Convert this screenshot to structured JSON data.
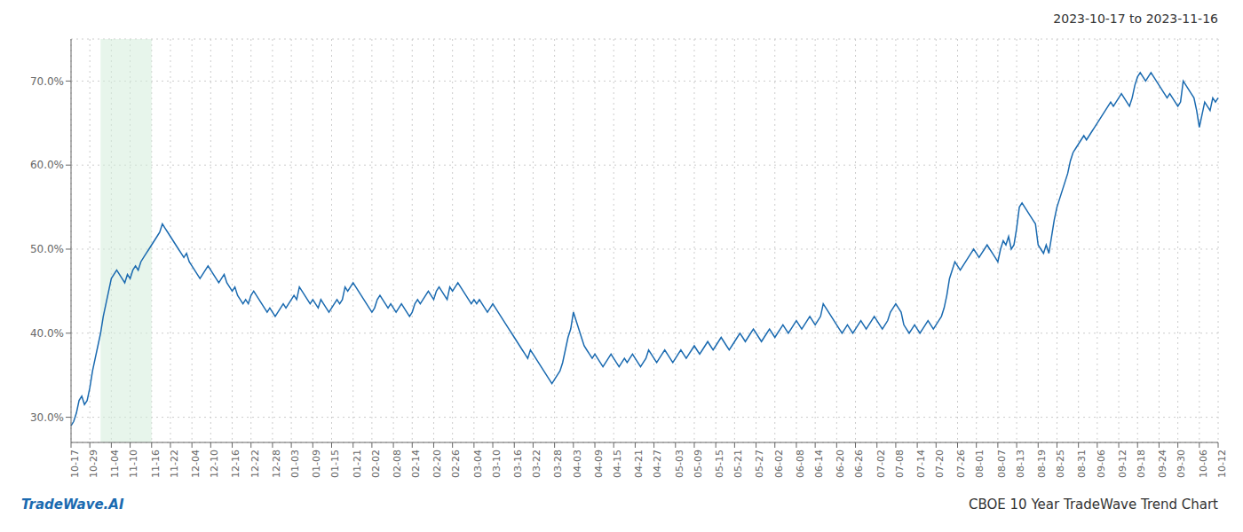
{
  "chart_data": {
    "type": "line",
    "title": "2023-10-17 to 2023-11-16",
    "annotations": [
      {
        "text": "TradeWave.AI",
        "color": "#1a6ab0"
      },
      {
        "text": "CBOE 10 Year TradeWave Trend Chart"
      }
    ],
    "color": "#1a6ab0",
    "grid": true,
    "highlight": {
      "from": 1.5,
      "to": 4.0,
      "color": "#d4edda"
    },
    "ylim": [
      27.0,
      75.0
    ],
    "yticks": [
      {
        "value": 30.0,
        "label": "30.0%"
      },
      {
        "value": 40.0,
        "label": "40.0%"
      },
      {
        "value": 50.0,
        "label": "50.0%"
      },
      {
        "value": 60.0,
        "label": "60.0%"
      },
      {
        "value": 70.0,
        "label": "70.0%"
      }
    ],
    "categories": [
      "10-17",
      null,
      null,
      null,
      null,
      null,
      null,
      "10-29",
      null,
      null,
      null,
      null,
      null,
      null,
      null,
      "11-04",
      null,
      null,
      null,
      null,
      null,
      null,
      "11-10",
      null,
      null,
      null,
      null,
      null,
      null,
      null,
      "11-16",
      null,
      null,
      null,
      null,
      null,
      null,
      "11-22",
      null,
      null,
      null,
      null,
      null,
      null,
      null,
      "12-04",
      null,
      null,
      null,
      null,
      null,
      null,
      "12-10",
      null,
      null,
      null,
      null,
      null,
      null,
      null,
      "12-16",
      null,
      null,
      null,
      null,
      null,
      null,
      "12-22",
      null,
      null,
      null,
      null,
      null,
      null,
      null,
      "12-28",
      null,
      null,
      null,
      null,
      null,
      null,
      "01-03",
      null,
      null,
      null,
      null,
      null,
      null,
      null,
      "01-09",
      null,
      null,
      null,
      null,
      null,
      null,
      "01-15",
      null,
      null,
      null,
      null,
      null,
      null,
      null,
      "01-21",
      null,
      null,
      null,
      null,
      null,
      null,
      "02-02",
      null,
      null,
      null,
      null,
      null,
      null,
      null,
      "02-08",
      null,
      null,
      null,
      null,
      null,
      null,
      "02-14",
      null,
      null,
      null,
      null,
      null,
      null,
      null,
      "02-20",
      null,
      null,
      null,
      null,
      null,
      null,
      "02-26",
      null,
      null,
      null,
      null,
      null,
      null,
      null,
      "03-04",
      null,
      null,
      null,
      null,
      null,
      null,
      "03-10",
      null,
      null,
      null,
      null,
      null,
      null,
      null,
      "03-16",
      null,
      null,
      null,
      null,
      null,
      null,
      "03-22",
      null,
      null,
      null,
      null,
      null,
      null,
      null,
      "03-28",
      null,
      null,
      null,
      null,
      null,
      null,
      "04-03",
      null,
      null,
      null,
      null,
      null,
      null,
      null,
      "04-09",
      null,
      null,
      null,
      null,
      null,
      null,
      "04-15",
      null,
      null,
      null,
      null,
      null,
      null,
      null,
      "04-21",
      null,
      null,
      null,
      null,
      null,
      null,
      "04-27",
      null,
      null,
      null,
      null,
      null,
      null,
      null,
      "05-03",
      null,
      null,
      null,
      null,
      null,
      null,
      "05-09",
      null,
      null,
      null,
      null,
      null,
      null,
      null,
      "05-15",
      null,
      null,
      null,
      null,
      null,
      null,
      "05-21",
      null,
      null,
      null,
      null,
      null,
      null,
      null,
      "05-27",
      null,
      null,
      null,
      null,
      null,
      null,
      "06-02",
      null,
      null,
      null,
      null,
      null,
      null,
      null,
      "06-08",
      null,
      null,
      null,
      null,
      null,
      null,
      "06-14",
      null,
      null,
      null,
      null,
      null,
      null,
      null,
      "06-20",
      null,
      null,
      null,
      null,
      null,
      null,
      "06-26",
      null,
      null,
      null,
      null,
      null,
      null,
      null,
      "07-02",
      null,
      null,
      null,
      null,
      null,
      null,
      "07-08",
      null,
      null,
      null,
      null,
      null,
      null,
      null,
      "07-14",
      null,
      null,
      null,
      null,
      null,
      null,
      "07-20",
      null,
      null,
      null,
      null,
      null,
      null,
      null,
      "07-26",
      null,
      null,
      null,
      null,
      null,
      null,
      "08-01",
      null,
      null,
      null,
      null,
      null,
      null,
      null,
      "08-07",
      null,
      null,
      null,
      null,
      null,
      null,
      "08-13",
      null,
      null,
      null,
      null,
      null,
      null,
      null,
      "08-19",
      null,
      null,
      null,
      null,
      null,
      null,
      "08-25",
      null,
      null,
      null,
      null,
      null,
      null,
      null,
      "08-31",
      null,
      null,
      null,
      null,
      null,
      null,
      "09-06",
      null,
      null,
      null,
      null,
      null,
      null,
      null,
      "09-12",
      null,
      null,
      null,
      null,
      null,
      null,
      "09-18",
      null,
      null,
      null,
      null,
      null,
      null,
      null,
      "09-24",
      null,
      null,
      null,
      null,
      null,
      null,
      "09-30",
      null,
      null,
      null,
      null,
      null,
      null,
      null,
      "10-06",
      null,
      null,
      null,
      null,
      null,
      null,
      "10-12"
    ],
    "values": [
      29.0,
      29.5,
      30.5,
      32.0,
      32.5,
      31.5,
      32.0,
      33.5,
      35.5,
      37.0,
      38.5,
      40.0,
      42.0,
      43.5,
      45.0,
      46.5,
      47.0,
      47.5,
      47.0,
      46.5,
      46.0,
      47.0,
      46.5,
      47.5,
      48.0,
      47.5,
      48.5,
      49.0,
      49.5,
      50.0,
      50.5,
      51.0,
      51.5,
      52.0,
      53.0,
      52.5,
      52.0,
      51.5,
      51.0,
      50.5,
      50.0,
      49.5,
      49.0,
      49.5,
      48.5,
      48.0,
      47.5,
      47.0,
      46.5,
      47.0,
      47.5,
      48.0,
      47.5,
      47.0,
      46.5,
      46.0,
      46.5,
      47.0,
      46.0,
      45.5,
      45.0,
      45.5,
      44.5,
      44.0,
      43.5,
      44.0,
      43.5,
      44.5,
      45.0,
      44.5,
      44.0,
      43.5,
      43.0,
      42.5,
      43.0,
      42.5,
      42.0,
      42.5,
      43.0,
      43.5,
      43.0,
      43.5,
      44.0,
      44.5,
      44.0,
      45.5,
      45.0,
      44.5,
      44.0,
      43.5,
      44.0,
      43.5,
      43.0,
      44.0,
      43.5,
      43.0,
      42.5,
      43.0,
      43.5,
      44.0,
      43.5,
      44.0,
      45.5,
      45.0,
      45.5,
      46.0,
      45.5,
      45.0,
      44.5,
      44.0,
      43.5,
      43.0,
      42.5,
      43.0,
      44.0,
      44.5,
      44.0,
      43.5,
      43.0,
      43.5,
      43.0,
      42.5,
      43.0,
      43.5,
      43.0,
      42.5,
      42.0,
      42.5,
      43.5,
      44.0,
      43.5,
      44.0,
      44.5,
      45.0,
      44.5,
      44.0,
      45.0,
      45.5,
      45.0,
      44.5,
      44.0,
      45.5,
      45.0,
      45.5,
      46.0,
      45.5,
      45.0,
      44.5,
      44.0,
      43.5,
      44.0,
      43.5,
      44.0,
      43.5,
      43.0,
      42.5,
      43.0,
      43.5,
      43.0,
      42.5,
      42.0,
      41.5,
      41.0,
      40.5,
      40.0,
      39.5,
      39.0,
      38.5,
      38.0,
      37.5,
      37.0,
      38.0,
      37.5,
      37.0,
      36.5,
      36.0,
      35.5,
      35.0,
      34.5,
      34.0,
      34.5,
      35.0,
      35.5,
      36.5,
      38.0,
      39.5,
      40.5,
      42.5,
      41.5,
      40.5,
      39.5,
      38.5,
      38.0,
      37.5,
      37.0,
      37.5,
      37.0,
      36.5,
      36.0,
      36.5,
      37.0,
      37.5,
      37.0,
      36.5,
      36.0,
      36.5,
      37.0,
      36.5,
      37.0,
      37.5,
      37.0,
      36.5,
      36.0,
      36.5,
      37.0,
      38.0,
      37.5,
      37.0,
      36.5,
      37.0,
      37.5,
      38.0,
      37.5,
      37.0,
      36.5,
      37.0,
      37.5,
      38.0,
      37.5,
      37.0,
      37.5,
      38.0,
      38.5,
      38.0,
      37.5,
      38.0,
      38.5,
      39.0,
      38.5,
      38.0,
      38.5,
      39.0,
      39.5,
      39.0,
      38.5,
      38.0,
      38.5,
      39.0,
      39.5,
      40.0,
      39.5,
      39.0,
      39.5,
      40.0,
      40.5,
      40.0,
      39.5,
      39.0,
      39.5,
      40.0,
      40.5,
      40.0,
      39.5,
      40.0,
      40.5,
      41.0,
      40.5,
      40.0,
      40.5,
      41.0,
      41.5,
      41.0,
      40.5,
      41.0,
      41.5,
      42.0,
      41.5,
      41.0,
      41.5,
      42.0,
      43.5,
      43.0,
      42.5,
      42.0,
      41.5,
      41.0,
      40.5,
      40.0,
      40.5,
      41.0,
      40.5,
      40.0,
      40.5,
      41.0,
      41.5,
      41.0,
      40.5,
      41.0,
      41.5,
      42.0,
      41.5,
      41.0,
      40.5,
      41.0,
      41.5,
      42.5,
      43.0,
      43.5,
      43.0,
      42.5,
      41.0,
      40.5,
      40.0,
      40.5,
      41.0,
      40.5,
      40.0,
      40.5,
      41.0,
      41.5,
      41.0,
      40.5,
      41.0,
      41.5,
      42.0,
      43.0,
      44.5,
      46.5,
      47.5,
      48.5,
      48.0,
      47.5,
      48.0,
      48.5,
      49.0,
      49.5,
      50.0,
      49.5,
      49.0,
      49.5,
      50.0,
      50.5,
      50.0,
      49.5,
      49.0,
      48.5,
      50.0,
      51.0,
      50.5,
      51.5,
      50.0,
      50.5,
      52.5,
      55.0,
      55.5,
      55.0,
      54.5,
      54.0,
      53.5,
      53.0,
      50.5,
      50.0,
      49.5,
      50.5,
      49.5,
      51.5,
      53.5,
      55.0,
      56.0,
      57.0,
      58.0,
      59.0,
      60.5,
      61.5,
      62.0,
      62.5,
      63.0,
      63.5,
      63.0,
      63.5,
      64.0,
      64.5,
      65.0,
      65.5,
      66.0,
      66.5,
      67.0,
      67.5,
      67.0,
      67.5,
      68.0,
      68.5,
      68.0,
      67.5,
      67.0,
      68.0,
      69.5,
      70.5,
      71.0,
      70.5,
      70.0,
      70.5,
      71.0,
      70.5,
      70.0,
      69.5,
      69.0,
      68.5,
      68.0,
      68.5,
      68.0,
      67.5,
      67.0,
      67.5,
      70.0,
      69.5,
      69.0,
      68.5,
      68.0,
      66.5,
      64.5,
      66.0,
      67.5,
      67.0,
      66.5,
      68.0,
      67.5,
      68.0
    ]
  }
}
